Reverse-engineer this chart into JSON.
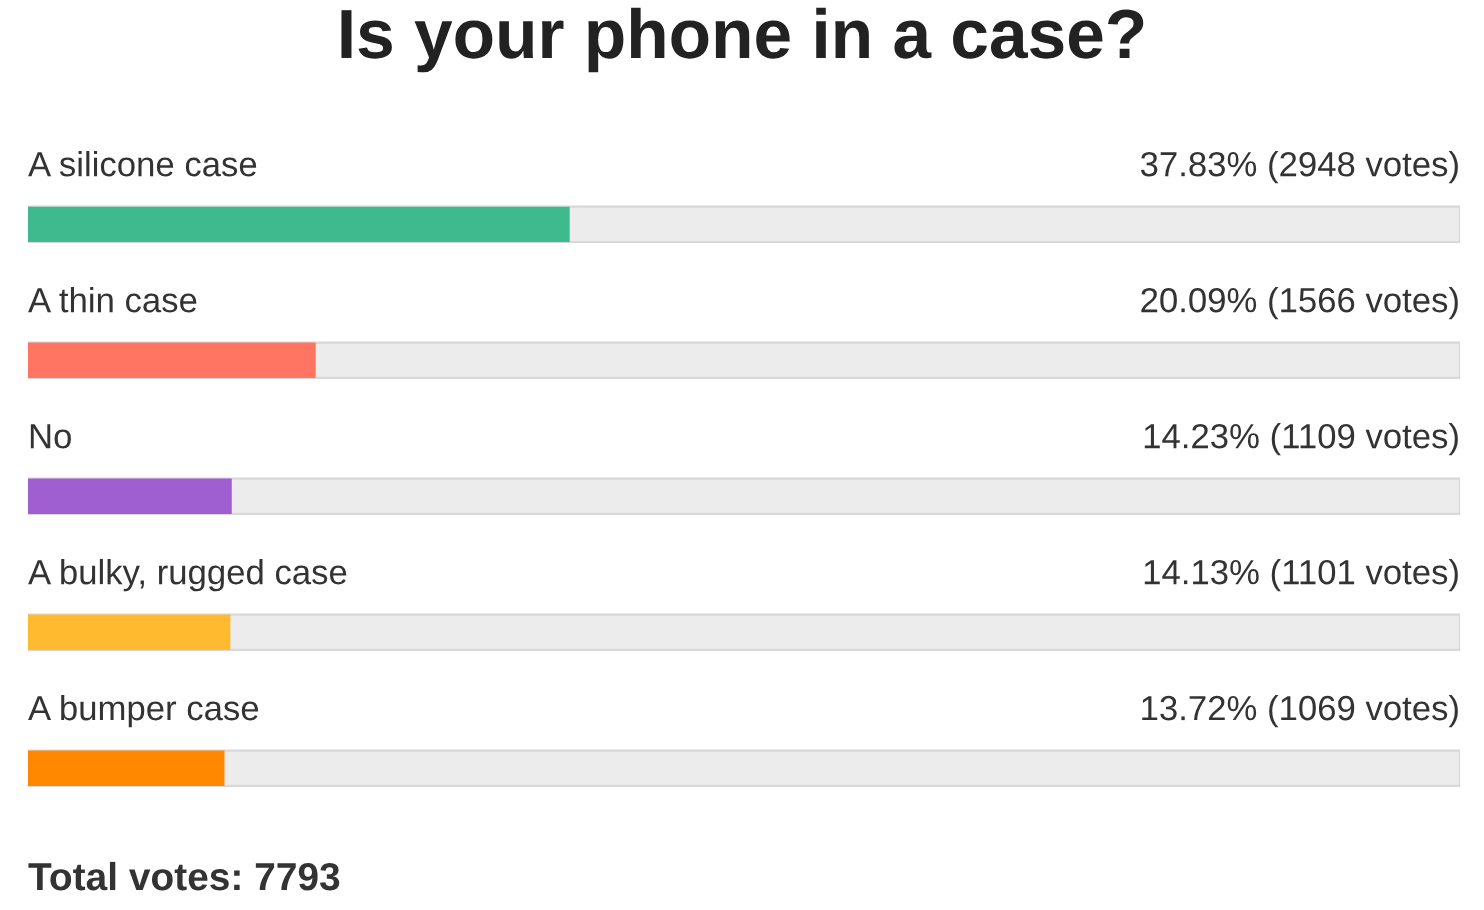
{
  "chart_data": {
    "type": "bar",
    "orientation": "horizontal",
    "title": "Is your phone in a case?",
    "categories": [
      "A silicone case",
      "A thin case",
      "No",
      "A bulky, rugged case",
      "A bumper case"
    ],
    "values": [
      37.83,
      20.09,
      14.23,
      14.13,
      13.72
    ],
    "colors": [
      "#3dbb8f",
      "#ff7561",
      "#a05fd0",
      "#ffba30",
      "#ff8800"
    ],
    "value_labels": [
      "37.83% (2948 votes)",
      "20.09% (1566 votes)",
      "14.23% (1109 votes)",
      "14.13% (1101 votes)",
      "13.72% (1069 votes)"
    ],
    "xlim": [
      0,
      100
    ],
    "annotations": [
      "Total votes: 7793"
    ]
  }
}
